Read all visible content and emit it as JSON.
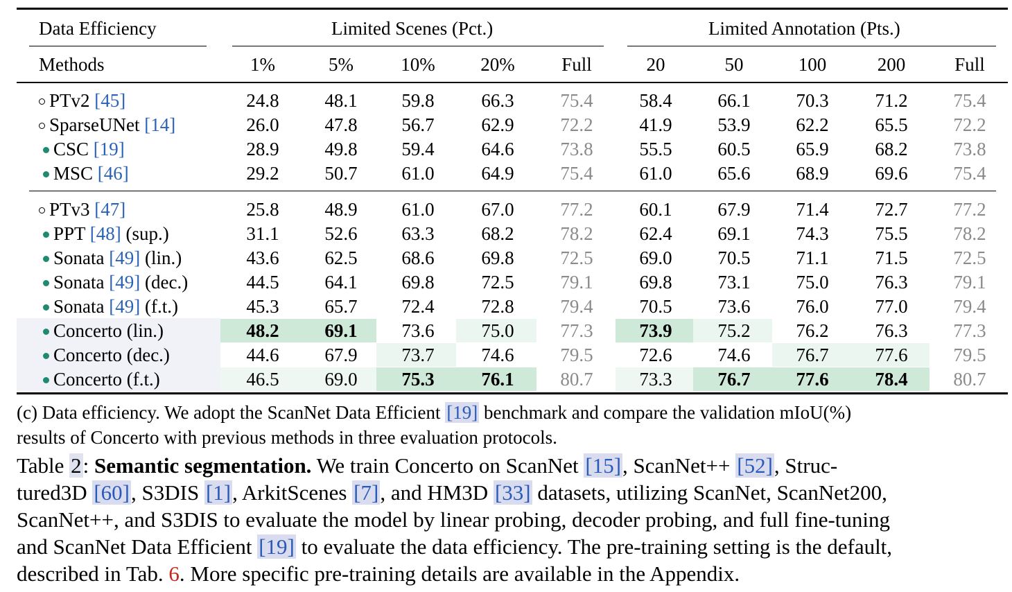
{
  "header": {
    "group_label": "Data Efficiency",
    "scenes_label": "Limited Scenes (Pct.)",
    "annotation_label": "Limited Annotation (Pts.)",
    "methods_label": "Methods",
    "scene_cols": [
      "1%",
      "5%",
      "10%",
      "20%",
      "Full"
    ],
    "annot_cols": [
      "20",
      "50",
      "100",
      "200",
      "Full"
    ]
  },
  "rows": [
    {
      "marker": "open",
      "name": "PTv2",
      "cite": "[45]",
      "suffix": "",
      "values": [
        "24.8",
        "48.1",
        "59.8",
        "66.3",
        "75.4",
        "58.4",
        "66.1",
        "70.3",
        "71.2",
        "75.4"
      ]
    },
    {
      "marker": "open",
      "name": "SparseUNet",
      "cite": "[14]",
      "suffix": "",
      "values": [
        "26.0",
        "47.8",
        "56.7",
        "62.9",
        "72.2",
        "41.9",
        "53.9",
        "62.2",
        "65.5",
        "72.2"
      ]
    },
    {
      "marker": "fill",
      "name": "CSC",
      "cite": "[19]",
      "suffix": "",
      "values": [
        "28.9",
        "49.8",
        "59.4",
        "64.6",
        "73.8",
        "55.5",
        "60.5",
        "65.9",
        "68.2",
        "73.8"
      ]
    },
    {
      "marker": "fill",
      "name": "MSC",
      "cite": "[46]",
      "suffix": "",
      "values": [
        "29.2",
        "50.7",
        "61.0",
        "64.9",
        "75.4",
        "61.0",
        "65.6",
        "68.9",
        "69.6",
        "75.4"
      ]
    },
    {
      "marker": "open",
      "name": "PTv3",
      "cite": "[47]",
      "suffix": "",
      "values": [
        "25.8",
        "48.9",
        "61.0",
        "67.0",
        "77.2",
        "60.1",
        "67.9",
        "71.4",
        "72.7",
        "77.2"
      ]
    },
    {
      "marker": "fill",
      "name": "PPT",
      "cite": "[48]",
      "suffix": "(sup.)",
      "values": [
        "31.1",
        "52.6",
        "63.3",
        "68.2",
        "78.2",
        "62.4",
        "69.1",
        "74.3",
        "75.5",
        "78.2"
      ]
    },
    {
      "marker": "fill",
      "name": "Sonata",
      "cite": "[49]",
      "suffix": "(lin.)",
      "values": [
        "43.6",
        "62.5",
        "68.6",
        "69.8",
        "72.5",
        "69.0",
        "70.5",
        "71.1",
        "71.5",
        "72.5"
      ]
    },
    {
      "marker": "fill",
      "name": "Sonata",
      "cite": "[49]",
      "suffix": "(dec.)",
      "values": [
        "44.5",
        "64.1",
        "69.8",
        "72.5",
        "79.1",
        "69.8",
        "73.1",
        "75.0",
        "76.3",
        "79.1"
      ]
    },
    {
      "marker": "fill",
      "name": "Sonata",
      "cite": "[49]",
      "suffix": "(f.t.)",
      "values": [
        "45.3",
        "65.7",
        "72.4",
        "72.8",
        "79.4",
        "70.5",
        "73.6",
        "76.0",
        "77.0",
        "79.4"
      ]
    },
    {
      "marker": "fill",
      "name": "Concerto (lin.)",
      "cite": "",
      "suffix": "",
      "values": [
        "48.2",
        "69.1",
        "73.6",
        "75.0",
        "77.3",
        "73.9",
        "75.2",
        "76.2",
        "76.3",
        "77.3"
      ]
    },
    {
      "marker": "fill",
      "name": "Concerto (dec.)",
      "cite": "",
      "suffix": "",
      "values": [
        "44.6",
        "67.9",
        "73.7",
        "74.6",
        "79.5",
        "72.6",
        "74.6",
        "76.7",
        "77.6",
        "79.5"
      ]
    },
    {
      "marker": "fill",
      "name": "Concerto (f.t.)",
      "cite": "",
      "suffix": "",
      "values": [
        "46.5",
        "69.0",
        "75.3",
        "76.1",
        "80.7",
        "73.3",
        "76.7",
        "77.6",
        "78.4",
        "80.7"
      ]
    }
  ],
  "colors": {
    "best": "#cfe9d9",
    "second": "#e6f4ec",
    "concerto_row": "#eef0f8",
    "citation": "#2a62b8",
    "tab_ref": "#c8261f"
  },
  "caption_c": {
    "line1_a": "(c) Data efficiency. We adopt the ScanNet Data Efficient ",
    "line1_cite": "[19]",
    "line1_b": " benchmark and compare the validation mIoU(%)",
    "line2": "results of Concerto with previous methods in three evaluation protocols."
  },
  "caption_main": {
    "label": "Table ",
    "num": "2",
    "colon": ": ",
    "bold": "Semantic segmentation.",
    "l1_a": " We train Concerto on ScanNet ",
    "c15": "[15]",
    "l1_b": ", ScanNet++ ",
    "c52": "[52]",
    "l1_c": ", Struc-",
    "l2_a": "tured3D ",
    "c60": "[60]",
    "l2_b": ", S3DIS ",
    "c1": "[1]",
    "l2_c": ", ArkitScenes ",
    "c7": "[7]",
    "l2_d": ", and HM3D ",
    "c33": "[33]",
    "l2_e": " datasets, utilizing ScanNet, ScanNet200,",
    "l3": "ScanNet++, and S3DIS to evaluate the model by linear probing, decoder probing, and full fine-tuning",
    "l4_a": "and ScanNet Data Efficient ",
    "c19": "[19]",
    "l4_b": " to evaluate the data efficiency. The pre-training setting is the default,",
    "l5_a": "described in Tab. ",
    "tab6": "6",
    "l5_b": ". More specific pre-training details are available in the Appendix."
  }
}
